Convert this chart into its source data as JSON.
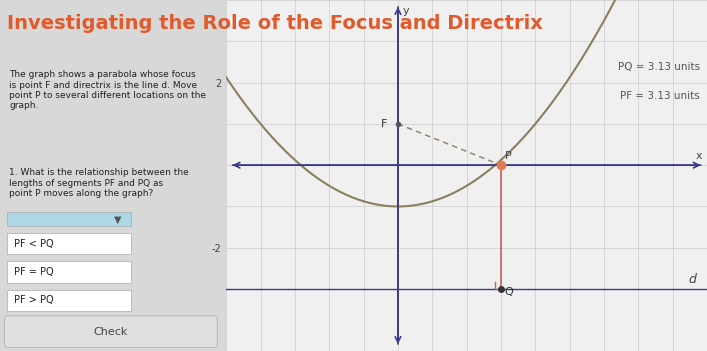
{
  "title": "Investigating the Role of the Focus and Directrix",
  "title_color": "#e05a2b",
  "title_fontsize": 14,
  "bg_color": "#d8d8d8",
  "graph_bg": "#f0f0f0",
  "left_panel_bg": "#f0f0f0",
  "description": "The graph shows a parabola whose focus\nis point F and directrix is the line d. Move\npoint P to several different locations on the\ngraph.",
  "question": "1. What is the relationship between the\nlengths of segments PF and PQ as\npoint P moves along the graph?",
  "parabola_color": "#8a8060",
  "parabola_a": 0.125,
  "parabola_vert_y": -1.0,
  "x_range": [
    -5,
    9
  ],
  "y_range": [
    -4.5,
    4
  ],
  "focus": [
    0,
    1
  ],
  "focus_label": "F",
  "directrix_y": -3,
  "directrix_label": "d",
  "point_P": [
    3,
    0
  ],
  "point_P_color": "#e07a50",
  "point_Q": [
    3,
    -3
  ],
  "point_Q_color": "#333333",
  "dashed_line_color": "#8a8060",
  "vertical_line_color": "#c06060",
  "annotation_PQ": "PQ = 3.13 units",
  "annotation_PF": "PF = 3.13 units",
  "annotation_color": "#555555",
  "axis_color": "#3a3a8a",
  "grid_color": "#cccccc",
  "tick_color": "#444444",
  "axis_label_x": "x",
  "axis_label_y": "y",
  "choices": [
    "PF < PQ",
    "PF = PQ",
    "PF > PQ"
  ],
  "selected_choice": "PF = PQ",
  "check_button": "Check"
}
